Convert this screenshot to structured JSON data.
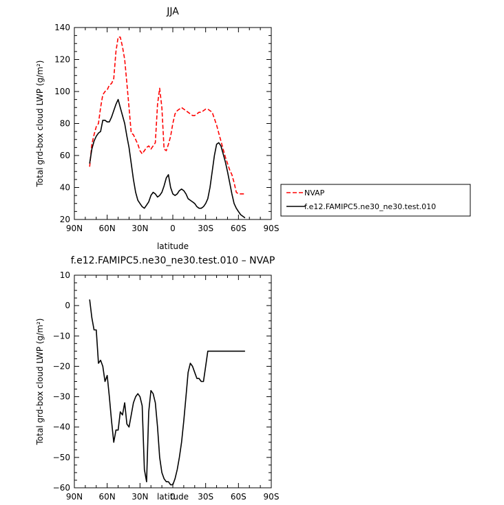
{
  "chart_data": [
    {
      "type": "line",
      "title": "JJA",
      "xlabel": "latitude",
      "ylabel": "Total grd-box cloud LWP (g/m²)",
      "xlim": [
        90,
        -90
      ],
      "ylim": [
        20,
        140
      ],
      "x_ticks": [
        90,
        60,
        30,
        0,
        -30,
        -60,
        -90
      ],
      "x_tick_labels": [
        "90N",
        "60N",
        "30N",
        "0",
        "30S",
        "60S",
        "90S"
      ],
      "y_ticks": [
        20,
        40,
        60,
        80,
        100,
        120,
        140
      ],
      "y_tick_labels": [
        "20",
        "40",
        "60",
        "80",
        "100",
        "120",
        "140"
      ],
      "legend_position": "right",
      "series": [
        {
          "name": "NVAP",
          "color": "#ff0000",
          "dash": "dashed",
          "x": [
            76,
            74,
            72,
            70,
            68,
            66,
            64,
            62,
            60,
            58,
            56,
            54,
            52,
            50,
            48,
            46,
            44,
            42,
            40,
            38,
            36,
            34,
            32,
            30,
            28,
            26,
            24,
            22,
            20,
            18,
            16,
            14,
            12,
            10,
            8,
            6,
            4,
            2,
            0,
            -2,
            -4,
            -6,
            -8,
            -10,
            -12,
            -14,
            -16,
            -18,
            -20,
            -22,
            -24,
            -26,
            -28,
            -30,
            -32,
            -34,
            -36,
            -38,
            -40,
            -42,
            -44,
            -46,
            -48,
            -50,
            -52,
            -54,
            -56,
            -58,
            -60,
            -62,
            -64,
            -66
          ],
          "y": [
            53,
            67,
            73,
            78,
            80,
            90,
            98,
            100,
            101,
            104,
            105,
            108,
            125,
            134,
            134,
            128,
            120,
            105,
            90,
            74,
            73,
            70,
            67,
            63,
            61,
            63,
            65,
            66,
            64,
            66,
            68,
            92,
            102,
            90,
            64,
            63,
            67,
            72,
            80,
            86,
            88,
            89,
            90,
            89,
            88,
            87,
            86,
            85,
            85,
            86,
            87,
            87,
            88,
            89,
            89,
            88,
            87,
            83,
            79,
            74,
            69,
            64,
            59,
            55,
            51,
            48,
            43,
            37,
            36,
            36,
            36,
            36
          ]
        },
        {
          "name": "f.e12.FAMIPC5.ne30_ne30.test.010",
          "color": "#000000",
          "dash": "solid",
          "x": [
            76,
            74,
            72,
            70,
            68,
            66,
            64,
            62,
            60,
            58,
            56,
            54,
            52,
            50,
            48,
            46,
            44,
            42,
            40,
            38,
            36,
            34,
            32,
            30,
            28,
            26,
            24,
            22,
            20,
            18,
            16,
            14,
            12,
            10,
            8,
            6,
            4,
            2,
            0,
            -2,
            -4,
            -6,
            -8,
            -10,
            -12,
            -14,
            -16,
            -18,
            -20,
            -22,
            -24,
            -26,
            -28,
            -30,
            -32,
            -34,
            -36,
            -38,
            -40,
            -42,
            -44,
            -46,
            -48,
            -50,
            -52,
            -54,
            -56,
            -58,
            -60,
            -62,
            -64,
            -66
          ],
          "y": [
            55,
            64,
            69,
            72,
            74,
            75,
            82,
            82,
            81,
            81,
            84,
            88,
            92,
            95,
            90,
            85,
            80,
            72,
            65,
            55,
            45,
            37,
            32,
            30,
            28,
            27,
            29,
            31,
            35,
            37,
            36,
            34,
            35,
            37,
            41,
            46,
            48,
            40,
            36,
            35,
            36,
            38,
            39,
            38,
            36,
            33,
            32,
            31,
            30,
            28,
            27,
            27,
            28,
            30,
            33,
            40,
            50,
            60,
            67,
            68,
            66,
            61,
            56,
            50,
            43,
            36,
            30,
            27,
            25,
            23,
            22,
            21
          ]
        }
      ]
    },
    {
      "type": "line",
      "title": "f.e12.FAMIPC5.ne30_ne30.test.010 – NVAP",
      "xlabel": "latitude",
      "ylabel": "Total grd-box cloud LWP (g/m²)",
      "xlim": [
        90,
        -90
      ],
      "ylim": [
        -60,
        10
      ],
      "x_ticks": [
        90,
        60,
        30,
        0,
        -30,
        -60,
        -90
      ],
      "x_tick_labels": [
        "90N",
        "60N",
        "30N",
        "0",
        "30S",
        "60S",
        "90S"
      ],
      "y_ticks": [
        10,
        0,
        -10,
        -20,
        -30,
        -40,
        -50,
        -60
      ],
      "y_tick_labels": [
        "10",
        "0",
        "−10",
        "−20",
        "−30",
        "−40",
        "−50",
        "−60"
      ],
      "series": [
        {
          "color": "#000000",
          "dash": "solid",
          "x": [
            76,
            74,
            72,
            70,
            68,
            66,
            64,
            62,
            60,
            58,
            56,
            54,
            52,
            50,
            48,
            46,
            44,
            42,
            40,
            38,
            36,
            34,
            32,
            30,
            28,
            26,
            24,
            22,
            20,
            18,
            16,
            14,
            12,
            10,
            8,
            6,
            4,
            2,
            0,
            -2,
            -4,
            -6,
            -8,
            -10,
            -12,
            -14,
            -16,
            -18,
            -20,
            -22,
            -24,
            -26,
            -28,
            -30,
            -32,
            -34,
            -36,
            -38,
            -40,
            -42,
            -44,
            -46,
            -48,
            -50,
            -52,
            -54,
            -56,
            -58,
            -60,
            -62,
            -64,
            -66
          ],
          "y": [
            2,
            -4,
            -8,
            -8,
            -19,
            -18,
            -20,
            -25,
            -23,
            -30,
            -38,
            -45,
            -41,
            -41,
            -35,
            -36,
            -32,
            -39,
            -40,
            -36,
            -32,
            -30,
            -29,
            -30,
            -33,
            -54,
            -58,
            -35,
            -28,
            -29,
            -32,
            -40,
            -50,
            -55,
            -57,
            -58,
            -58,
            -59,
            -59,
            -57,
            -54,
            -50,
            -45,
            -38,
            -30,
            -22,
            -19,
            -20,
            -22,
            -24,
            -24,
            -25,
            -25,
            -20,
            -15,
            -15,
            -15,
            -15,
            -15,
            -15,
            -15,
            -15,
            -15,
            -15,
            -15,
            -15,
            -15,
            -15,
            -15,
            -15,
            -15,
            -15
          ]
        }
      ]
    }
  ]
}
